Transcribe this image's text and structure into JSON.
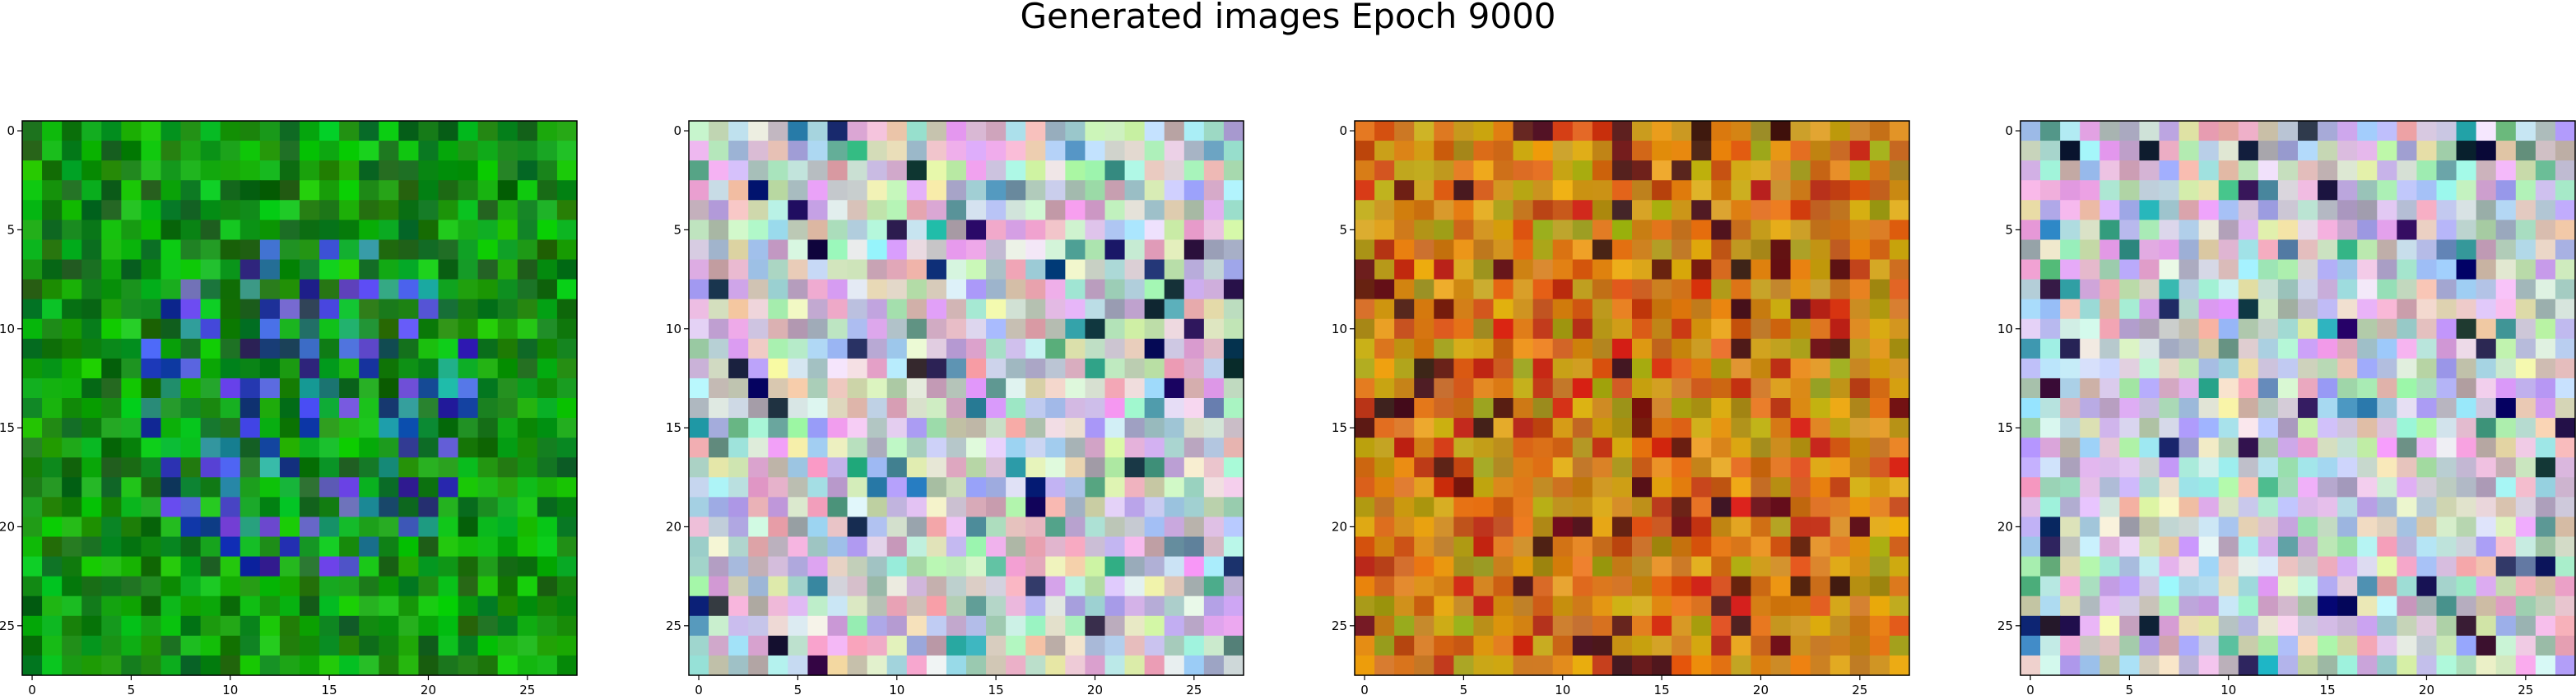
{
  "figure": {
    "title": "Generated images Epoch 9000"
  },
  "panels": [
    {
      "id": "sample-1",
      "palette": "green-blue",
      "grid_size": 28
    },
    {
      "id": "sample-2",
      "palette": "pastel-noise",
      "grid_size": 28
    },
    {
      "id": "sample-3",
      "palette": "orange-olive",
      "grid_size": 28
    },
    {
      "id": "sample-4",
      "palette": "pastel-noise",
      "grid_size": 28
    }
  ],
  "axes": {
    "x_ticks": [
      "0",
      "5",
      "10",
      "15",
      "20",
      "25"
    ],
    "y_ticks": [
      "0",
      "5",
      "10",
      "15",
      "20",
      "25"
    ],
    "x_tick_values": [
      0,
      5,
      10,
      15,
      20,
      25
    ],
    "y_tick_values": [
      0,
      5,
      10,
      15,
      20,
      25
    ],
    "range": [
      -0.5,
      27.5
    ]
  },
  "colors": {
    "axis": "#000000",
    "background": "#ffffff"
  }
}
